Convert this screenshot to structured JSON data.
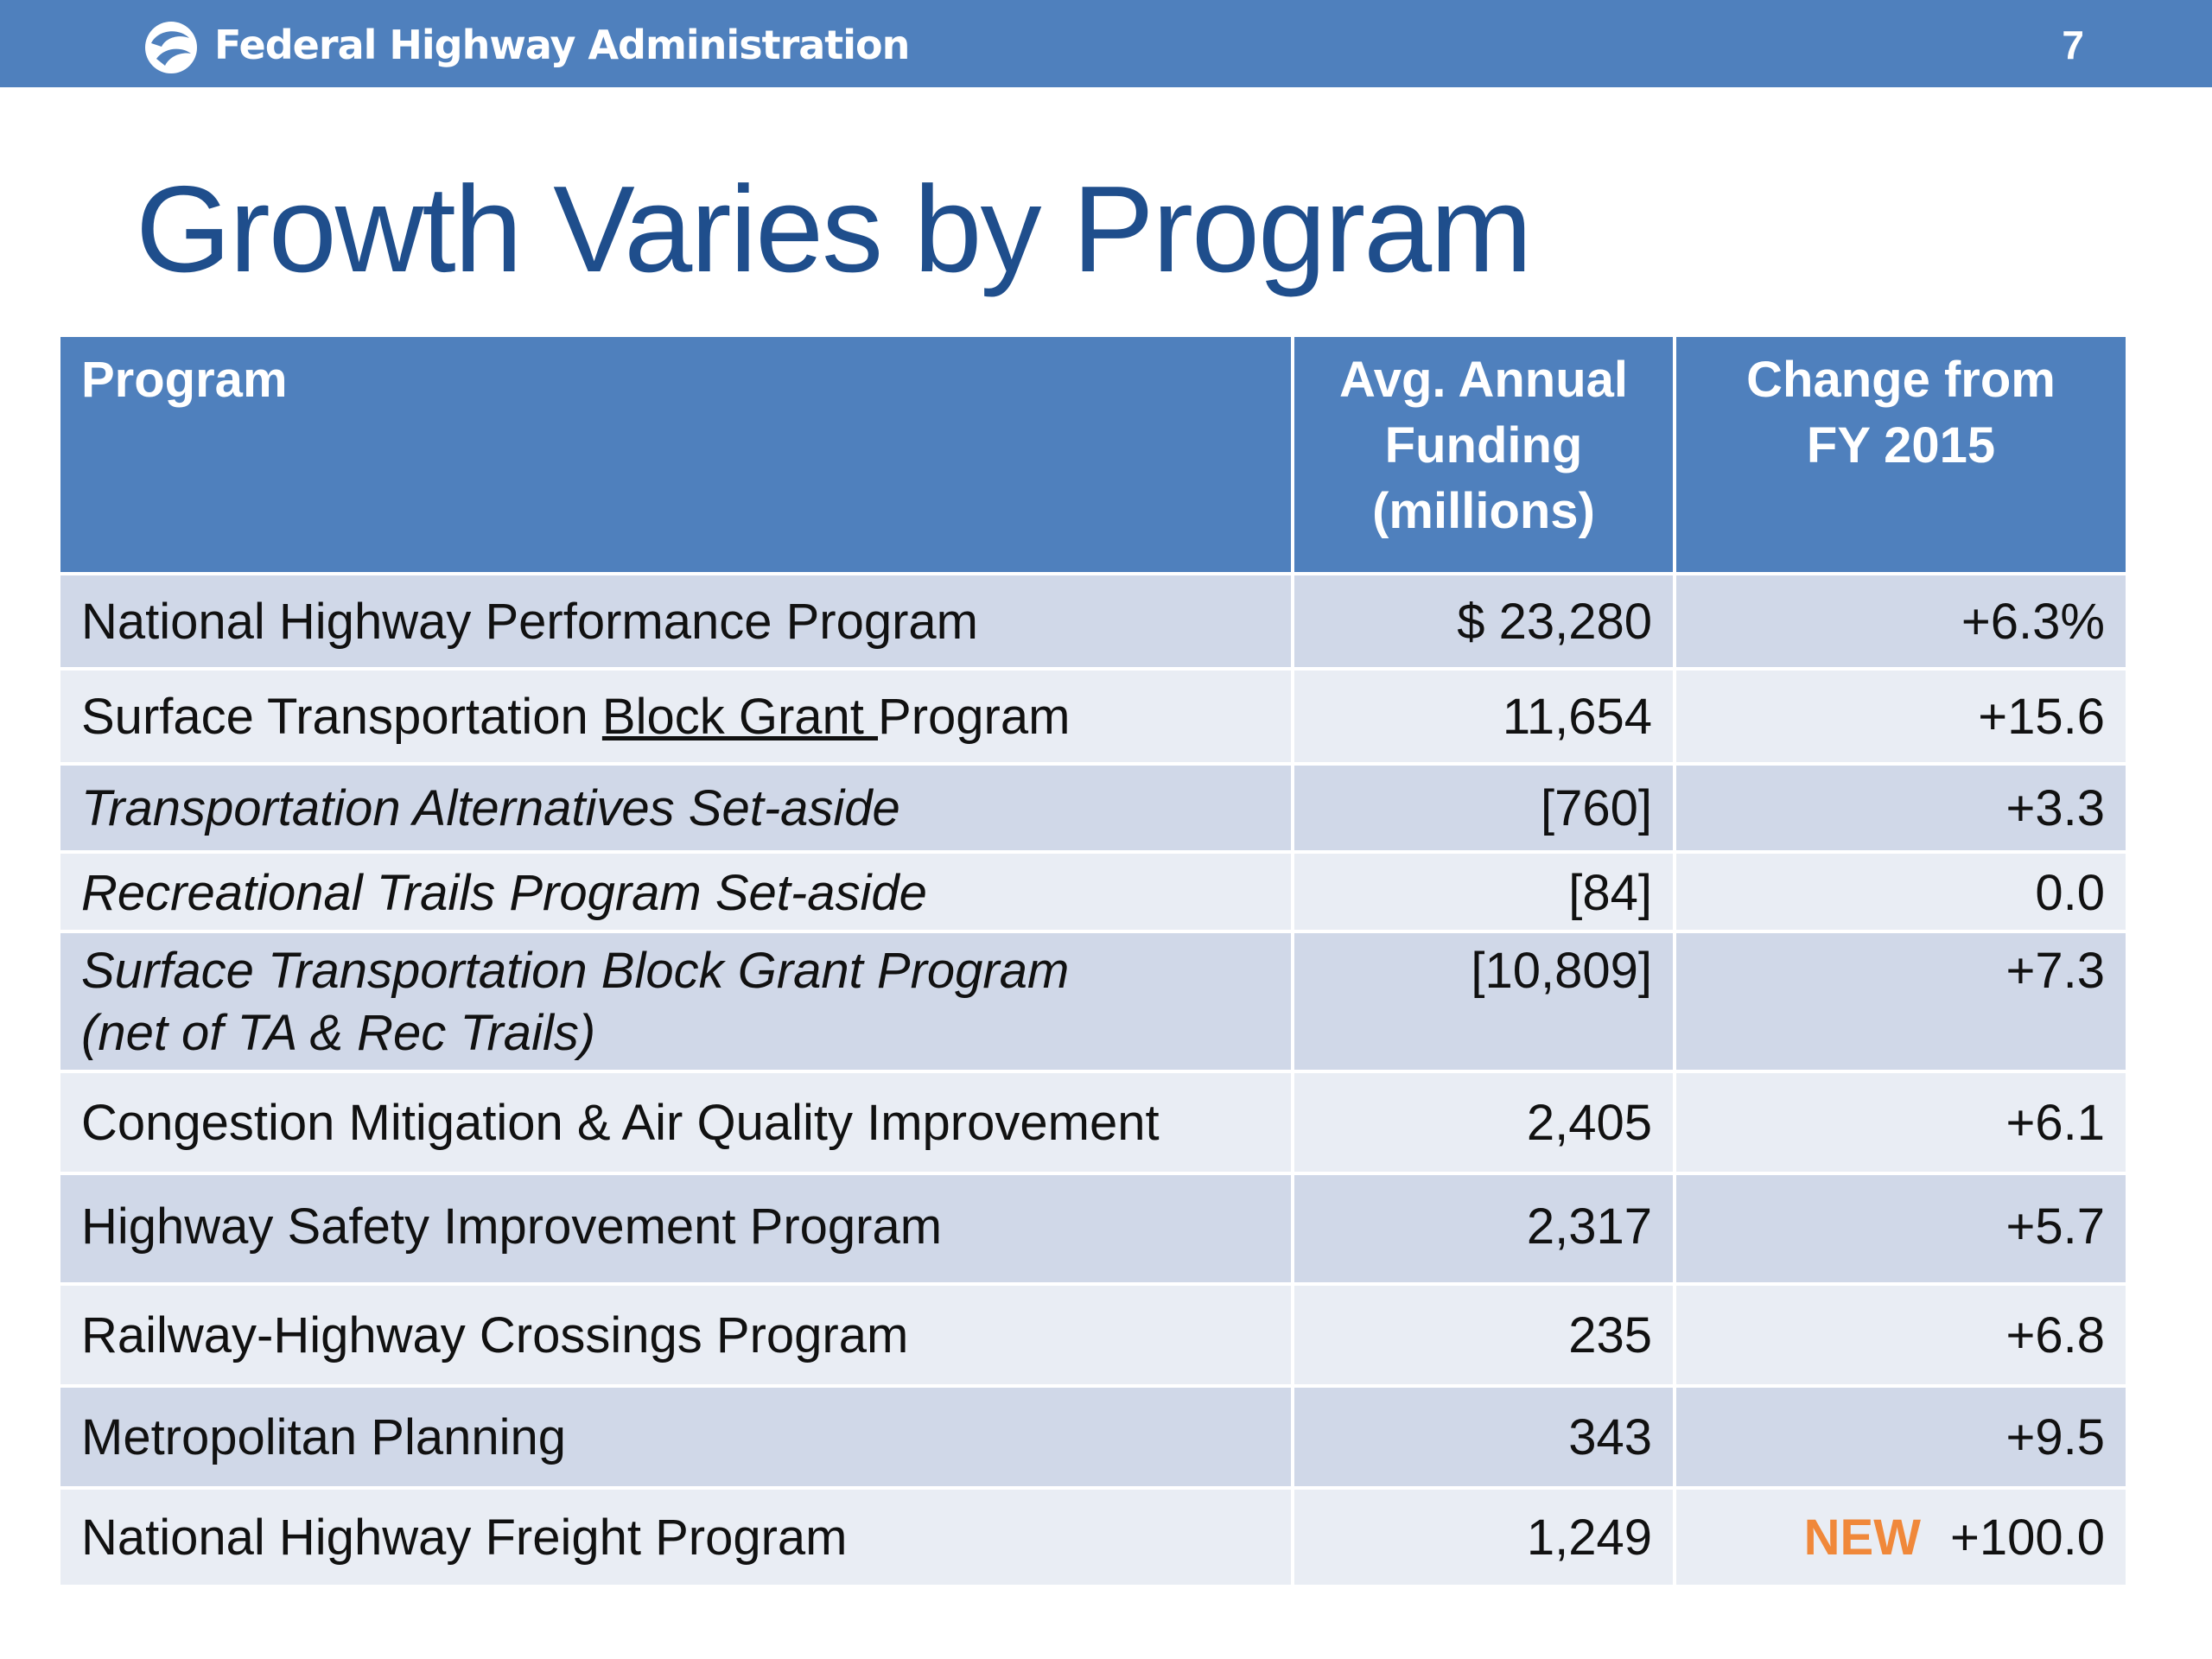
{
  "header": {
    "agency": "Federal Highway Administration",
    "slide_number": "7"
  },
  "title": "Growth Varies by Program",
  "table": {
    "columns": {
      "program": "Program",
      "funding_lines": [
        "Avg. Annual",
        "Funding",
        "(millions)"
      ],
      "change_lines": [
        "Change from",
        "FY 2015"
      ]
    },
    "rows": [
      {
        "program": "National Highway Performance Program",
        "funding": "$ 23,280",
        "change": "+6.3%"
      },
      {
        "program_a": "Surface Transportation ",
        "program_b": "Block Grant ",
        "program_c": "Program",
        "funding": "11,654",
        "change": "+15.6"
      },
      {
        "program": "Transportation Alternatives Set-aside",
        "funding": "[760]",
        "change": "+3.3"
      },
      {
        "program": "Recreational Trails Program Set-aside",
        "funding": "[84]",
        "change": "0.0"
      },
      {
        "program_line1": "Surface Transportation Block Grant Program",
        "program_line2": "(net of TA & Rec Trails)",
        "funding": "[10,809]",
        "change": "+7.3"
      },
      {
        "program": "Congestion Mitigation & Air Quality Improvement",
        "funding": "2,405",
        "change": "+6.1"
      },
      {
        "program": "Highway Safety Improvement Program",
        "funding": "2,317",
        "change": "+5.7"
      },
      {
        "program": "Railway-Highway Crossings Program",
        "funding": "235",
        "change": "+6.8"
      },
      {
        "program": "Metropolitan Planning",
        "funding": "343",
        "change": "+9.5"
      },
      {
        "program": "National Highway Freight Program",
        "funding": "1,249",
        "badge": "NEW",
        "change": "+100.0"
      }
    ]
  },
  "colors": {
    "header_blue": "#4f80bd",
    "title_blue": "#1f4e8c",
    "row_dark": "#d0d8e8",
    "row_light": "#e9edf4",
    "badge_orange": "#f0883a"
  }
}
